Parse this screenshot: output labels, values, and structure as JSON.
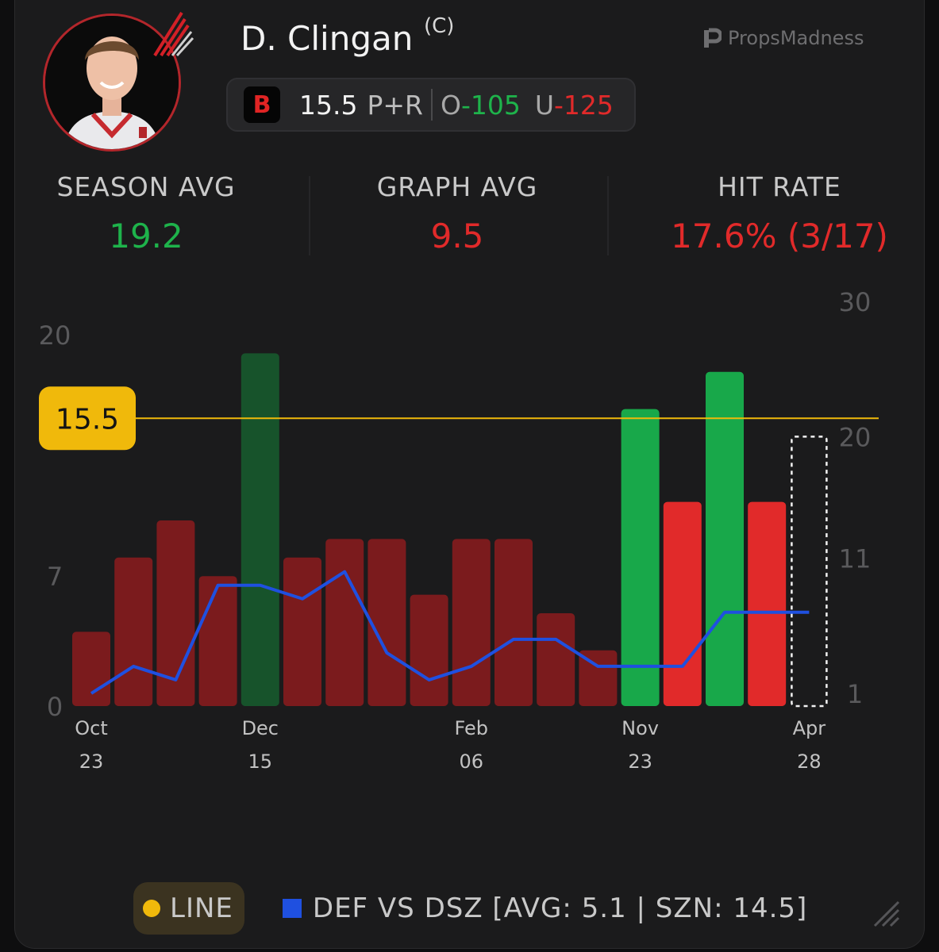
{
  "player": {
    "name": "D. Clingan",
    "position": "(C)"
  },
  "brand": {
    "name": "PropsMadness",
    "icon": "propsmadness-logo-icon"
  },
  "prop": {
    "book_icon": "B",
    "line": "15.5",
    "stat": "P+R",
    "over_label": "O",
    "over_odds": "-105",
    "under_label": "U",
    "under_odds": "-125"
  },
  "stats": {
    "season_avg_label": "SEASON AVG",
    "season_avg_value": "19.2",
    "graph_avg_label": "GRAPH AVG",
    "graph_avg_value": "9.5",
    "hit_rate_label": "HIT RATE",
    "hit_rate_value": "17.6% (3/17)"
  },
  "colors": {
    "hit_recent": "#18a84a",
    "miss_recent": "#e12a2a",
    "hit_old": "#17532b",
    "miss_old": "#7b1b1d",
    "line": "#f0b90b",
    "def": "#1f50e0"
  },
  "chart_data": {
    "type": "bar",
    "title": "",
    "line_value": 15.5,
    "line_label": "15.5",
    "ylim_left": [
      0,
      20
    ],
    "yticks_left": [
      "20",
      "15",
      "7",
      "0"
    ],
    "yticks_left_values": [
      20,
      15,
      7,
      0
    ],
    "ylim_right": [
      1,
      30
    ],
    "yticks_right": [
      "30",
      "20",
      "11",
      "1"
    ],
    "yticks_right_values": [
      30,
      20,
      11,
      1
    ],
    "x_labels": [
      {
        "index": 0,
        "month": "Oct",
        "day": "23"
      },
      {
        "index": 4,
        "month": "Dec",
        "day": "15"
      },
      {
        "index": 9,
        "month": "Feb",
        "day": "06"
      },
      {
        "index": 13,
        "month": "Nov",
        "day": "23"
      },
      {
        "index": 17,
        "month": "Apr",
        "day": "28"
      }
    ],
    "bars": [
      {
        "value": 4,
        "status": "miss_old"
      },
      {
        "value": 8,
        "status": "miss_old"
      },
      {
        "value": 10,
        "status": "miss_old"
      },
      {
        "value": 7,
        "status": "miss_old"
      },
      {
        "value": 19,
        "status": "hit_old"
      },
      {
        "value": 8,
        "status": "miss_old"
      },
      {
        "value": 9,
        "status": "miss_old"
      },
      {
        "value": 9,
        "status": "miss_old"
      },
      {
        "value": 6,
        "status": "miss_old"
      },
      {
        "value": 9,
        "status": "miss_old"
      },
      {
        "value": 9,
        "status": "miss_old"
      },
      {
        "value": 5,
        "status": "miss_old"
      },
      {
        "value": 3,
        "status": "miss_old"
      },
      {
        "value": 16,
        "status": "hit_recent"
      },
      {
        "value": 11,
        "status": "miss_recent"
      },
      {
        "value": 18,
        "status": "hit_recent"
      },
      {
        "value": 11,
        "status": "miss_recent"
      },
      {
        "value": null,
        "status": "upcoming"
      }
    ],
    "def_series": {
      "name": "DEF VS DSZ",
      "values": [
        1,
        3,
        2,
        9,
        9,
        8,
        10,
        4,
        2,
        3,
        5,
        5,
        3,
        3,
        3,
        7,
        7,
        7
      ]
    },
    "legend": {
      "line_label": "LINE",
      "def_label": "DEF VS DSZ [AVG: 5.1 | SZN: 14.5]"
    }
  }
}
